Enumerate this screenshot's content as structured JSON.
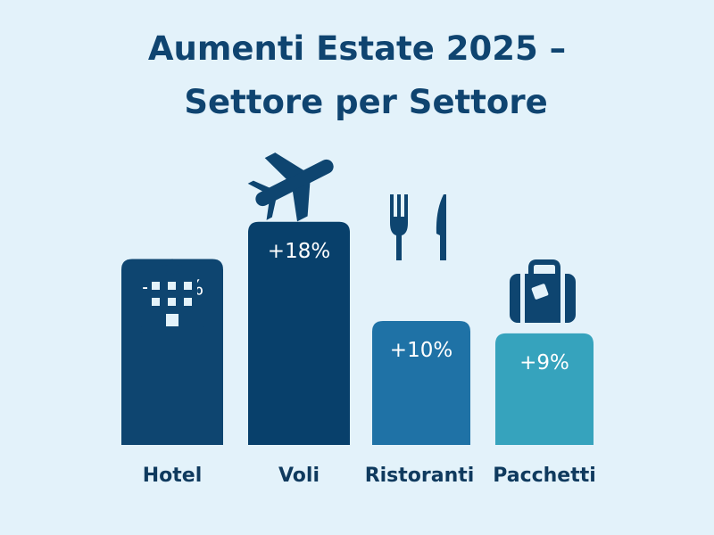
{
  "chart_data": {
    "type": "bar",
    "title_lines": [
      "Aumenti Estate 2025 –",
      "Settore per Settore"
    ],
    "xlabel": "",
    "ylabel": "",
    "categories": [
      "Hotel",
      "Voli",
      "Ristoranti",
      "Pacchetti"
    ],
    "values": [
      15,
      18,
      10,
      9
    ],
    "data_labels": [
      "+15%",
      "+18%",
      "+10%",
      "+9%"
    ],
    "icons": [
      "hotel-icon",
      "airplane-icon",
      "fork-knife-icon",
      "suitcase-icon"
    ],
    "colors": [
      "#0e4570",
      "#08406b",
      "#1f72a6",
      "#36a3bd"
    ],
    "grid": false,
    "legend": "none"
  }
}
